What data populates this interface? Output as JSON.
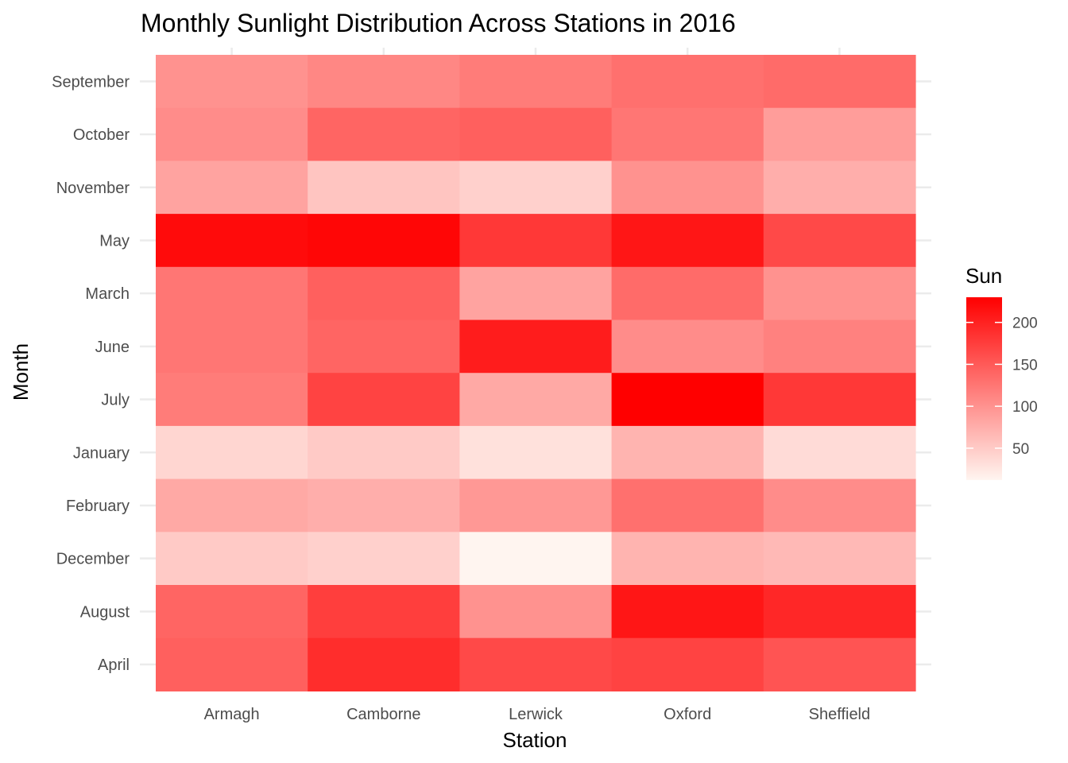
{
  "chart_data": {
    "type": "heatmap",
    "title": "Monthly Sunlight Distribution Across Stations in 2016",
    "xlabel": "Station",
    "ylabel": "Month",
    "x_categories": [
      "Armagh",
      "Camborne",
      "Lerwick",
      "Oxford",
      "Sheffield"
    ],
    "y_categories_top_to_bottom": [
      "September",
      "October",
      "November",
      "May",
      "March",
      "June",
      "July",
      "January",
      "February",
      "December",
      "August",
      "April"
    ],
    "values": [
      [
        100,
        110,
        120,
        130,
        135
      ],
      [
        105,
        140,
        145,
        125,
        90
      ],
      [
        85,
        55,
        45,
        100,
        75
      ],
      [
        220,
        225,
        180,
        210,
        165
      ],
      [
        125,
        145,
        85,
        135,
        100
      ],
      [
        125,
        140,
        205,
        105,
        115
      ],
      [
        120,
        170,
        80,
        230,
        180
      ],
      [
        40,
        50,
        30,
        70,
        35
      ],
      [
        80,
        75,
        95,
        130,
        105
      ],
      [
        50,
        45,
        12,
        70,
        65
      ],
      [
        140,
        175,
        100,
        210,
        195
      ],
      [
        145,
        190,
        165,
        170,
        155
      ]
    ],
    "legend": {
      "title": "Sun",
      "ticks": [
        50,
        100,
        150,
        200
      ],
      "range": [
        12,
        230
      ],
      "low_color": "#fff5f0",
      "high_color": "#ff0000",
      "position": "right"
    },
    "grid": true
  }
}
